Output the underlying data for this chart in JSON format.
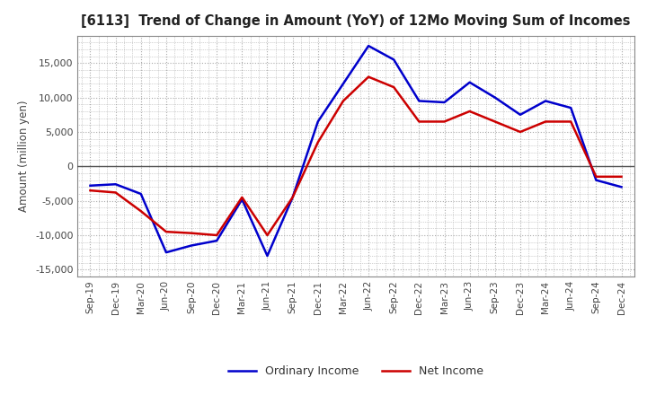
{
  "title": "[6113]  Trend of Change in Amount (YoY) of 12Mo Moving Sum of Incomes",
  "ylabel": "Amount (million yen)",
  "ylim": [
    -16000,
    19000
  ],
  "yticks": [
    -15000,
    -10000,
    -5000,
    0,
    5000,
    10000,
    15000
  ],
  "grid_color": "#aaaaaa",
  "background_color": "#ffffff",
  "plot_bg_color": "#ffffff",
  "ordinary_income_color": "#0000cc",
  "net_income_color": "#cc0000",
  "x_labels": [
    "Sep-19",
    "Dec-19",
    "Mar-20",
    "Jun-20",
    "Sep-20",
    "Dec-20",
    "Mar-21",
    "Jun-21",
    "Sep-21",
    "Dec-21",
    "Mar-22",
    "Jun-22",
    "Sep-22",
    "Dec-22",
    "Mar-23",
    "Jun-23",
    "Sep-23",
    "Dec-23",
    "Mar-24",
    "Jun-24",
    "Sep-24",
    "Dec-24"
  ],
  "ordinary_income": [
    -2800,
    -2600,
    -4000,
    -12500,
    -11500,
    -10800,
    -4800,
    -13000,
    -4500,
    6500,
    12000,
    17500,
    15500,
    9500,
    9300,
    12200,
    10000,
    7500,
    9500,
    8500,
    -2000,
    -3000
  ],
  "net_income": [
    -3500,
    -3800,
    -6500,
    -9500,
    -9700,
    -10000,
    -4500,
    -10000,
    -4500,
    3500,
    9500,
    13000,
    11500,
    6500,
    6500,
    8000,
    6500,
    5000,
    6500,
    6500,
    -1500,
    -1500
  ]
}
